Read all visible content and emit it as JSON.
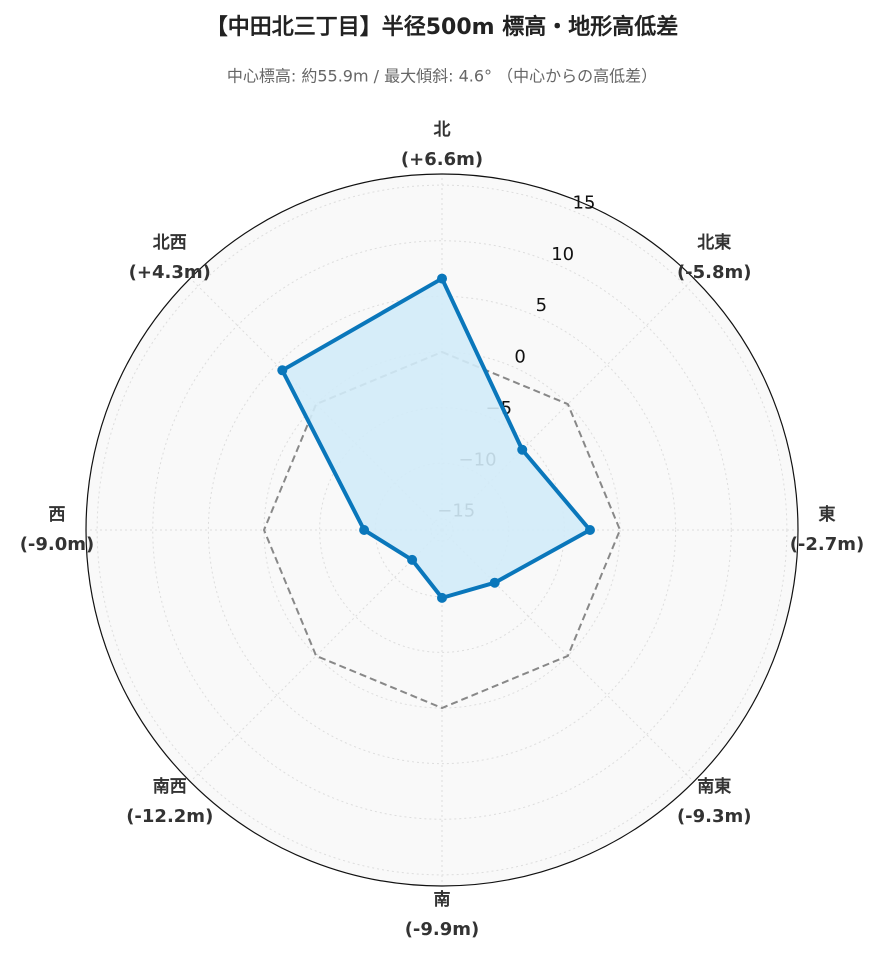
{
  "chart_data": {
    "type": "radar",
    "title": "【中田北三丁目】半径500m 標高・地形高低差",
    "subtitle": "中心標高: 約55.9m / 最大傾斜: 4.6° （中心からの高低差）",
    "categories": [
      "北",
      "北東",
      "東",
      "南東",
      "南",
      "南西",
      "西",
      "北西"
    ],
    "values": [
      6.6,
      -5.8,
      -2.7,
      -9.3,
      -9.9,
      -12.2,
      -9.0,
      4.3
    ],
    "value_labels": [
      "(+6.6m)",
      "(-5.8m)",
      "(-2.7m)",
      "(-9.3m)",
      "(-9.9m)",
      "(-12.2m)",
      "(-9.0m)",
      "(+4.3m)"
    ],
    "color": "#0a77bb",
    "fill_color": "#d2ebf8",
    "zero_line": 0,
    "ylim": [
      -16,
      16
    ],
    "yticks": [
      {
        "value": -15,
        "label": "−15"
      },
      {
        "value": -10,
        "label": "−10"
      },
      {
        "value": -5,
        "label": "−5"
      },
      0,
      5,
      10,
      15
    ],
    "grid": true
  }
}
